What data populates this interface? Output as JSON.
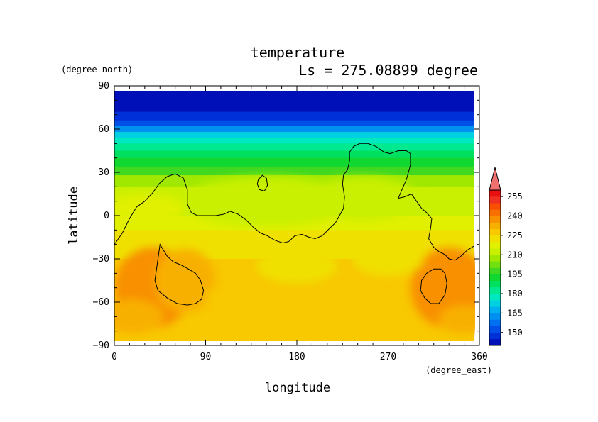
{
  "chart_data": {
    "type": "heatmap",
    "title": "temperature",
    "subtitle": "Ls = 275.08899 degree",
    "xlabel": "longitude",
    "ylabel": "latitude",
    "x_units": "(degree_east)",
    "y_units": "(degree_north)",
    "xlim": [
      0,
      360
    ],
    "ylim": [
      -90,
      90
    ],
    "x_ticks": [
      {
        "value": 0,
        "label": "0"
      },
      {
        "value": 90,
        "label": "90"
      },
      {
        "value": 180,
        "label": "180"
      },
      {
        "value": 270,
        "label": "270"
      },
      {
        "value": 360,
        "label": "360"
      }
    ],
    "y_ticks": [
      {
        "value": 90,
        "label": "90"
      },
      {
        "value": 60,
        "label": "60"
      },
      {
        "value": 30,
        "label": "30"
      },
      {
        "value": 0,
        "label": "0"
      },
      {
        "value": -30,
        "label": "−30"
      },
      {
        "value": -60,
        "label": "−60"
      },
      {
        "value": -90,
        "label": "−90"
      }
    ],
    "data_extent": {
      "lon": [
        0,
        355
      ],
      "lat": [
        -87,
        87
      ]
    },
    "colorbar": {
      "levels": [
        140,
        145,
        150,
        155,
        160,
        165,
        170,
        175,
        180,
        185,
        190,
        195,
        200,
        205,
        210,
        215,
        220,
        225,
        230,
        235,
        240,
        245,
        250,
        255,
        260
      ],
      "colors": [
        "#0010b8",
        "#0030d8",
        "#0050e8",
        "#0070f0",
        "#0090f0",
        "#00b0f0",
        "#00d0e0",
        "#00e8c0",
        "#00e890",
        "#00e060",
        "#10d830",
        "#40d820",
        "#70e010",
        "#a0e800",
        "#c8f000",
        "#e0f000",
        "#f0e000",
        "#f8c800",
        "#f8b000",
        "#f89000",
        "#f87000",
        "#f85000",
        "#f03020",
        "#e81010"
      ],
      "overflow_color": "#f07070",
      "labels": [
        "150",
        "165",
        "180",
        "195",
        "210",
        "225",
        "240",
        "255"
      ]
    },
    "temperature_profile": [
      {
        "lat": 87,
        "temp": 141
      },
      {
        "lat": 80,
        "temp": 142
      },
      {
        "lat": 72,
        "temp": 145
      },
      {
        "lat": 66,
        "temp": 152
      },
      {
        "lat": 62,
        "temp": 160
      },
      {
        "lat": 58,
        "temp": 170
      },
      {
        "lat": 54,
        "temp": 177
      },
      {
        "lat": 50,
        "temp": 183
      },
      {
        "lat": 45,
        "temp": 189
      },
      {
        "lat": 40,
        "temp": 194
      },
      {
        "lat": 34,
        "temp": 199
      },
      {
        "lat": 28,
        "temp": 205
      },
      {
        "lat": 20,
        "temp": 210
      },
      {
        "lat": 10,
        "temp": 214
      },
      {
        "lat": 0,
        "temp": 217
      },
      {
        "lat": -10,
        "temp": 221
      },
      {
        "lat": -20,
        "temp": 224
      },
      {
        "lat": -30,
        "temp": 226
      },
      {
        "lat": -45,
        "temp": 227
      },
      {
        "lat": -60,
        "temp": 228
      },
      {
        "lat": -75,
        "temp": 228
      },
      {
        "lat": -87,
        "temp": 226
      }
    ],
    "anomalies": [
      {
        "lon": 38,
        "lat": -50,
        "rx": 38,
        "ry": 28,
        "temp": 236
      },
      {
        "lon": 18,
        "lat": -70,
        "rx": 30,
        "ry": 12,
        "temp": 234
      },
      {
        "lon": 330,
        "lat": -50,
        "rx": 38,
        "ry": 28,
        "temp": 236
      },
      {
        "lon": 345,
        "lat": -72,
        "rx": 25,
        "ry": 10,
        "temp": 234
      },
      {
        "lon": 70,
        "lat": -45,
        "rx": 30,
        "ry": 22,
        "temp": 232
      },
      {
        "lon": 150,
        "lat": 10,
        "rx": 85,
        "ry": 17,
        "temp": 210
      },
      {
        "lon": 245,
        "lat": 12,
        "rx": 55,
        "ry": 15,
        "temp": 212
      },
      {
        "lon": 30,
        "lat": 5,
        "rx": 40,
        "ry": 10,
        "temp": 216
      },
      {
        "lon": 180,
        "lat": -35,
        "rx": 40,
        "ry": 12,
        "temp": 223
      },
      {
        "lon": 270,
        "lat": -30,
        "rx": 35,
        "ry": 12,
        "temp": 223
      },
      {
        "lon": 100,
        "lat": -57,
        "rx": 10,
        "ry": 7,
        "temp": 226
      }
    ],
    "contours": [
      {
        "name": "topography-north",
        "closed": false,
        "points": [
          [
            0,
            -20
          ],
          [
            8,
            -12
          ],
          [
            15,
            -2
          ],
          [
            22,
            6
          ],
          [
            30,
            10
          ],
          [
            38,
            16
          ],
          [
            44,
            22
          ],
          [
            52,
            27
          ],
          [
            60,
            29
          ],
          [
            68,
            26
          ],
          [
            72,
            18
          ],
          [
            72,
            8
          ],
          [
            76,
            2
          ],
          [
            82,
            0
          ],
          [
            90,
            0
          ],
          [
            100,
            0
          ],
          [
            108,
            1
          ],
          [
            114,
            3
          ],
          [
            122,
            1
          ],
          [
            130,
            -3
          ],
          [
            137,
            -8
          ],
          [
            144,
            -12
          ],
          [
            151,
            -14
          ],
          [
            158,
            -17
          ],
          [
            166,
            -19
          ],
          [
            172,
            -18
          ],
          [
            178,
            -14
          ],
          [
            185,
            -13
          ],
          [
            192,
            -15
          ],
          [
            198,
            -16
          ],
          [
            205,
            -14
          ],
          [
            212,
            -9
          ],
          [
            218,
            -5
          ],
          [
            222,
            0
          ],
          [
            226,
            5
          ],
          [
            227,
            13
          ],
          [
            225,
            22
          ],
          [
            226,
            28
          ],
          [
            230,
            32
          ],
          [
            232,
            38
          ],
          [
            232,
            44
          ],
          [
            236,
            48
          ],
          [
            242,
            50
          ],
          [
            250,
            50
          ],
          [
            258,
            48
          ],
          [
            266,
            44
          ],
          [
            272,
            43
          ],
          [
            280,
            45
          ],
          [
            288,
            45
          ],
          [
            292,
            43
          ],
          [
            292,
            35
          ],
          [
            288,
            25
          ],
          [
            283,
            17
          ],
          [
            280,
            12
          ],
          [
            286,
            13
          ],
          [
            293,
            15
          ],
          [
            298,
            10
          ],
          [
            303,
            5
          ],
          [
            308,
            2
          ],
          [
            313,
            -2
          ],
          [
            312,
            -8
          ],
          [
            310,
            -16
          ],
          [
            315,
            -22
          ],
          [
            320,
            -25
          ],
          [
            326,
            -27
          ],
          [
            330,
            -30
          ],
          [
            336,
            -31
          ],
          [
            342,
            -28
          ],
          [
            348,
            -24
          ],
          [
            355,
            -21
          ]
        ]
      },
      {
        "name": "topography-hellas",
        "closed": true,
        "points": [
          [
            45,
            -20
          ],
          [
            52,
            -28
          ],
          [
            58,
            -32
          ],
          [
            65,
            -34
          ],
          [
            73,
            -37
          ],
          [
            80,
            -40
          ],
          [
            85,
            -45
          ],
          [
            88,
            -52
          ],
          [
            86,
            -58
          ],
          [
            80,
            -61
          ],
          [
            72,
            -62
          ],
          [
            62,
            -61
          ],
          [
            52,
            -57
          ],
          [
            43,
            -52
          ],
          [
            40,
            -45
          ],
          [
            42,
            -35
          ]
        ]
      },
      {
        "name": "topography-argyre",
        "closed": true,
        "points": [
          [
            303,
            -45
          ],
          [
            308,
            -40
          ],
          [
            315,
            -37
          ],
          [
            322,
            -37
          ],
          [
            326,
            -40
          ],
          [
            328,
            -47
          ],
          [
            326,
            -55
          ],
          [
            320,
            -61
          ],
          [
            312,
            -61
          ],
          [
            306,
            -57
          ],
          [
            302,
            -52
          ]
        ]
      },
      {
        "name": "topography-elysium",
        "closed": true,
        "points": [
          [
            142,
            25
          ],
          [
            146,
            28
          ],
          [
            150,
            26
          ],
          [
            151,
            21
          ],
          [
            148,
            17
          ],
          [
            143,
            18
          ],
          [
            141,
            22
          ]
        ]
      }
    ]
  }
}
